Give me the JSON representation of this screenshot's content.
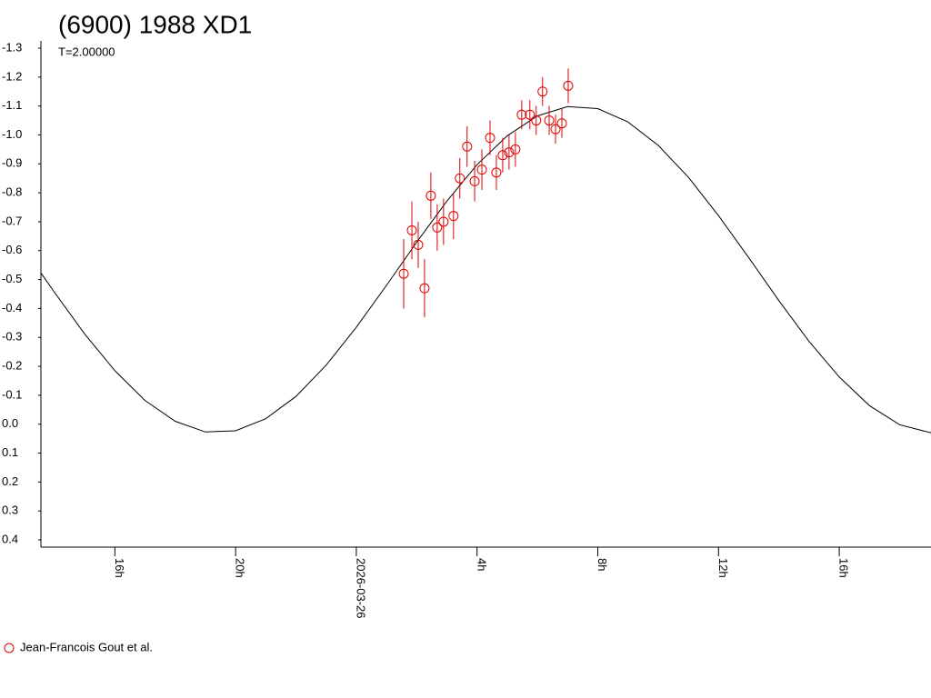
{
  "chart_data": {
    "type": "scatter",
    "title": "(6900) 1988 XD1",
    "subtitle": "T=2.00000",
    "ylim": [
      -1.3,
      0.4
    ],
    "y_inverted": true,
    "yticks": [
      -1.3,
      -1.2,
      -1.1,
      {
        "value": -1,
        "label": "-1.0"
      },
      -0.9,
      -0.8,
      -0.7,
      -0.6,
      -0.5,
      -0.4,
      -0.3,
      -0.2,
      -0.1,
      {
        "value": 0,
        "label": "0.0"
      },
      0.1,
      0.2,
      0.3,
      0.4
    ],
    "xlim": [
      -10.45,
      19.04
    ],
    "xticks": [
      {
        "value": -8,
        "label": "16h"
      },
      {
        "value": -4,
        "label": "20h"
      },
      {
        "value": 0,
        "label": "2026-03-26"
      },
      {
        "value": 4,
        "label": "4h"
      },
      {
        "value": 8,
        "label": "8h"
      },
      {
        "value": 12,
        "label": "12h"
      },
      {
        "value": 16,
        "label": "16h"
      }
    ],
    "model": {
      "color": "#000000",
      "x": [
        -10.45,
        -10,
        -9,
        -8,
        -7,
        -6,
        -5,
        -4,
        -3,
        -2,
        -1,
        0,
        1,
        2,
        3,
        4,
        5,
        6,
        7,
        8,
        9,
        10,
        11,
        12,
        13,
        14,
        15,
        16,
        17,
        18,
        19,
        19.04
      ],
      "values": [
        -0.523,
        -0.456,
        -0.312,
        -0.185,
        -0.082,
        -0.01,
        0.027,
        0.023,
        -0.019,
        -0.096,
        -0.204,
        -0.335,
        -0.48,
        -0.629,
        -0.771,
        -0.897,
        -0.997,
        -1.066,
        -1.098,
        -1.091,
        -1.045,
        -0.964,
        -0.854,
        -0.721,
        -0.576,
        -0.427,
        -0.286,
        -0.163,
        -0.064,
        0.002,
        0.029,
        0.029
      ]
    },
    "series": [
      {
        "name": "Jean-Francois Gout et al.",
        "color": "#dd0000",
        "x": [
          1.57,
          1.84,
          2.05,
          2.26,
          2.47,
          2.68,
          2.89,
          3.22,
          3.43,
          3.67,
          3.92,
          4.16,
          4.43,
          4.64,
          4.85,
          5.06,
          5.27,
          5.48,
          5.75,
          5.96,
          6.17,
          6.39,
          6.6,
          6.81,
          7.02
        ],
        "values": [
          -0.52,
          -0.67,
          -0.62,
          -0.47,
          -0.79,
          -0.68,
          -0.7,
          -0.72,
          -0.85,
          -0.96,
          -0.84,
          -0.88,
          -0.99,
          -0.87,
          -0.93,
          -0.94,
          -0.95,
          -1.07,
          -1.07,
          -1.05,
          -1.15,
          -1.05,
          -1.02,
          -1.04,
          -1.17
        ],
        "errors": [
          0.12,
          0.1,
          0.08,
          0.1,
          0.08,
          0.08,
          0.08,
          0.08,
          0.07,
          0.07,
          0.07,
          0.07,
          0.06,
          0.06,
          0.06,
          0.06,
          0.06,
          0.05,
          0.05,
          0.05,
          0.05,
          0.05,
          0.05,
          0.05,
          0.06
        ]
      }
    ]
  }
}
